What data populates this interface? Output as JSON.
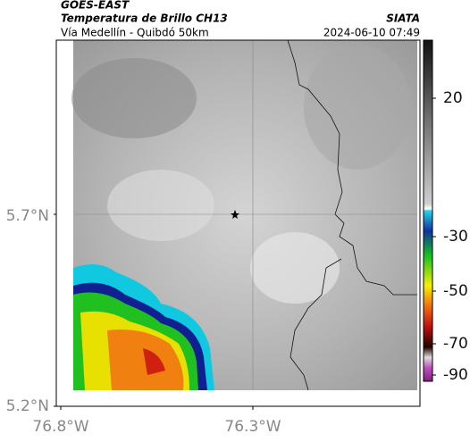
{
  "header": {
    "title": "GOES-EAST",
    "subtitle": "Temperatura de Brillo CH13",
    "location": "Vía Medellín - Quibdó 50km",
    "source": "SIATA",
    "datetime": "2024-06-10 07:49"
  },
  "map": {
    "lat_labels": [
      "5.7°N",
      "5.2°N"
    ],
    "lon_labels": [
      "76.8°W",
      "76.3°W"
    ]
  },
  "colorbar": {
    "labels": [
      "20",
      "-30",
      "-50",
      "-70",
      "-90"
    ]
  }
}
